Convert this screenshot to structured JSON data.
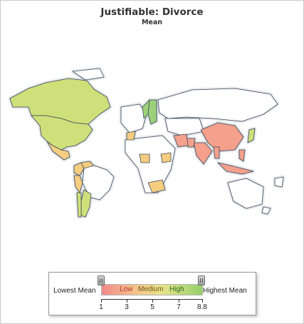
{
  "title": "Justifiable: Divorce",
  "subtitle": "Mean",
  "legend": {
    "lowest_label": "Lowest Mean",
    "highest_label": "Highest Mean",
    "band_low": "Low",
    "band_medium": "Medium",
    "band_high": "High",
    "range": [
      1,
      8.8
    ],
    "ticks": [
      "1",
      "3",
      "5",
      "7",
      "8.8"
    ],
    "slider_min": 1,
    "slider_max": 8.8
  },
  "colors": {
    "ocean": "#ffffff",
    "no_data": "#ffffff",
    "low": "#f4a08c",
    "medium": "#f5cd80",
    "high": "#cfe07a",
    "very_high": "#9cd17a",
    "border": "#3a4a5a",
    "shadow": "#c7ccd3"
  },
  "regions": [
    {
      "name": "Canada",
      "level": "high"
    },
    {
      "name": "United States",
      "level": "high"
    },
    {
      "name": "Mexico",
      "level": "medium"
    },
    {
      "name": "Colombia",
      "level": "medium"
    },
    {
      "name": "Venezuela",
      "level": "medium"
    },
    {
      "name": "Peru",
      "level": "medium"
    },
    {
      "name": "Brazil",
      "level": "no_data"
    },
    {
      "name": "Argentina",
      "level": "high"
    },
    {
      "name": "Chile",
      "level": "high"
    },
    {
      "name": "Sweden",
      "level": "very_high"
    },
    {
      "name": "Norway",
      "level": "very_high"
    },
    {
      "name": "Russia",
      "level": "no_data"
    },
    {
      "name": "China",
      "level": "low"
    },
    {
      "name": "Japan",
      "level": "high"
    },
    {
      "name": "India",
      "level": "low"
    },
    {
      "name": "Pakistan",
      "level": "low"
    },
    {
      "name": "Iran",
      "level": "low"
    },
    {
      "name": "Morocco",
      "level": "medium"
    },
    {
      "name": "Nigeria",
      "level": "medium"
    },
    {
      "name": "Ethiopia",
      "level": "medium"
    },
    {
      "name": "South Africa",
      "level": "medium"
    },
    {
      "name": "Indonesia",
      "level": "low"
    },
    {
      "name": "Philippines",
      "level": "low"
    },
    {
      "name": "Thailand",
      "level": "low"
    },
    {
      "name": "Australia",
      "level": "no_data"
    }
  ]
}
